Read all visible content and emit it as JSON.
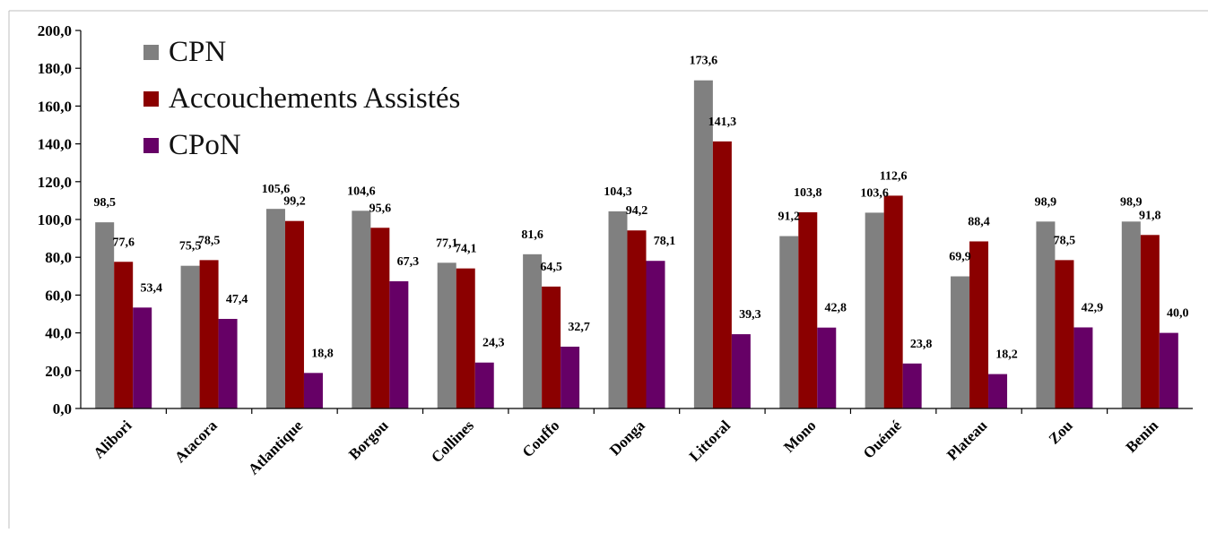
{
  "chart_data": {
    "type": "bar",
    "categories": [
      "Alibori",
      "Atacora",
      "Atlantique",
      "Borgou",
      "Collines",
      "Couffo",
      "Donga",
      "Littoral",
      "Mono",
      "Ouémé",
      "Plateau",
      "Zou",
      "Benin"
    ],
    "series": [
      {
        "name": "CPN",
        "color": "#808080",
        "values": [
          98.5,
          75.5,
          105.6,
          104.6,
          77.1,
          81.6,
          104.3,
          173.6,
          91.2,
          103.6,
          69.9,
          98.9,
          98.9
        ],
        "labels": [
          "98,5",
          "75,5",
          "105,6",
          "104,6",
          "77,1",
          "81,6",
          "104,3",
          "173,6",
          "91,2",
          "103,6",
          "69,9",
          "98,9",
          "98,9"
        ]
      },
      {
        "name": "Accouchements Assistés",
        "color": "#8B0000",
        "values": [
          77.6,
          78.5,
          99.2,
          95.6,
          74.1,
          64.5,
          94.2,
          141.3,
          103.8,
          112.6,
          88.4,
          78.5,
          91.8
        ],
        "labels": [
          "77,6",
          "78,5",
          "99,2",
          "95,6",
          "74,1",
          "64,5",
          "94,2",
          "141,3",
          "103,8",
          "112,6",
          "88,4",
          "78,5",
          "91,8"
        ]
      },
      {
        "name": "CPoN",
        "color": "#660066",
        "values": [
          53.4,
          47.4,
          18.8,
          67.3,
          24.3,
          32.7,
          78.1,
          39.3,
          42.8,
          23.8,
          18.2,
          42.9,
          40.0
        ],
        "labels": [
          "53,4",
          "47,4",
          "18,8",
          "67,3",
          "24,3",
          "32,7",
          "78,1",
          "39,3",
          "42,8",
          "23,8",
          "18,2",
          "42,9",
          "40,0"
        ]
      }
    ],
    "ylim": [
      0,
      200
    ],
    "yticks": [
      0,
      20,
      40,
      60,
      80,
      100,
      120,
      140,
      160,
      180,
      200
    ],
    "ytick_labels": [
      "0,0",
      "20,0",
      "40,0",
      "60,0",
      "80,0",
      "100,0",
      "120,0",
      "140,0",
      "160,0",
      "180,0",
      "200,0"
    ],
    "legend_position": "top-left",
    "grid": false
  }
}
